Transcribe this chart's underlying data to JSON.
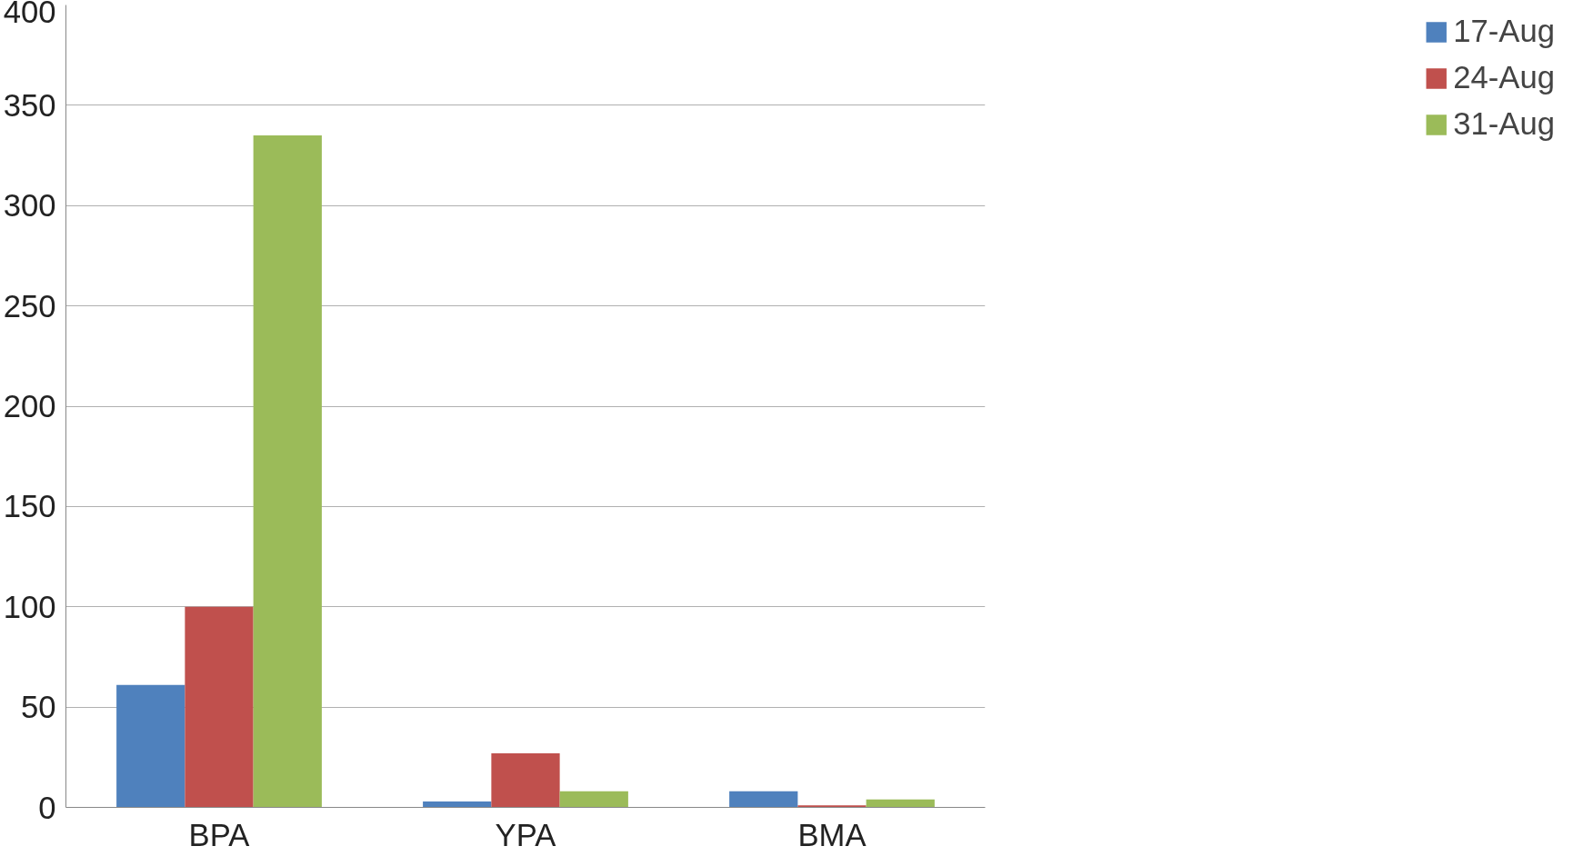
{
  "chart_data": {
    "type": "bar",
    "categories": [
      "BPA",
      "YPA",
      "BMA"
    ],
    "series": [
      {
        "name": "17-Aug",
        "color": "#4f81bd",
        "values": [
          61,
          3,
          8
        ]
      },
      {
        "name": "24-Aug",
        "color": "#c0504d",
        "values": [
          100,
          27,
          1
        ]
      },
      {
        "name": "31-Aug",
        "color": "#9bbb59",
        "values": [
          335,
          8,
          4
        ]
      }
    ],
    "ylim": [
      0,
      400
    ],
    "yticks": [
      0,
      50,
      100,
      150,
      200,
      250,
      300,
      350,
      400
    ],
    "grid": "y",
    "legend": "right"
  }
}
